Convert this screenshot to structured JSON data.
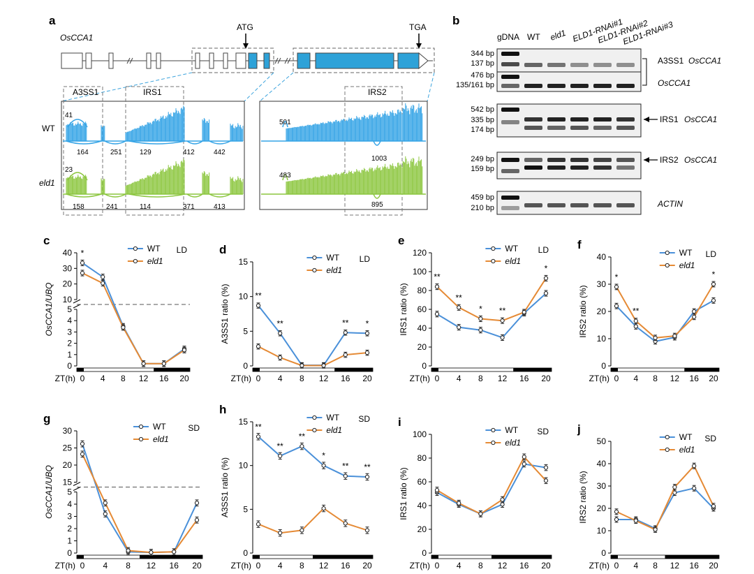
{
  "figure": {
    "colors": {
      "wt": "#4a90d9",
      "eld1": "#e58a35",
      "wt_track": "#33a3e6",
      "eld1_track": "#8cc63f",
      "exon": "#2ea2d8"
    },
    "panels": {
      "a": {
        "label": "a",
        "gene": "OsCCA1",
        "atg": "ATG",
        "tga": "TGA",
        "regions": [
          "A3SS1",
          "IRS1",
          "IRS2"
        ],
        "tracks": [
          {
            "name": "WT",
            "left_arc": "41",
            "right_arc": "501",
            "junctions": [
              "164",
              "251",
              "129",
              "412",
              "442"
            ],
            "right_junction": "1003"
          },
          {
            "name": "eld1",
            "left_arc": "23",
            "right_arc": "483",
            "junctions": [
              "158",
              "241",
              "114",
              "371",
              "413"
            ],
            "right_junction": "895"
          }
        ]
      },
      "b": {
        "label": "b",
        "lanes": [
          "gDNA",
          "WT",
          "eld1",
          "ELD1-RNAi#1",
          "ELD1-RNAi#2",
          "ELD1-RNAi#3"
        ],
        "gels": [
          {
            "sizes": [
              "344 bp",
              "137 bp"
            ],
            "label": "A3SS1",
            "gene": "OsCCA1"
          },
          {
            "sizes": [
              "476 bp",
              "135/161 bp"
            ],
            "label": "",
            "gene": "OsCCA1"
          },
          {
            "sizes": [
              "542 bp",
              "335 bp",
              "174 bp"
            ],
            "label": "IRS1",
            "gene": "OsCCA1"
          },
          {
            "sizes": [
              "249 bp",
              "159 bp"
            ],
            "label": "IRS2",
            "gene": "OsCCA1"
          },
          {
            "sizes": [
              "459 bp",
              "210 bp"
            ],
            "label": "",
            "gene": "ACTIN"
          }
        ]
      }
    }
  },
  "chart_data": [
    {
      "id": "c",
      "type": "line",
      "condition": "LD",
      "xlabel": "ZT(h)",
      "ylabel": "OsCCA1/UBQ",
      "x": [
        0,
        4,
        8,
        12,
        16,
        20
      ],
      "broken_axis": true,
      "yticks": [
        "0",
        "1",
        "2",
        "3",
        "4",
        "5",
        "10",
        "20",
        "30",
        "40"
      ],
      "series": [
        {
          "name": "WT",
          "values": [
            33.5,
            24.5,
            3.5,
            0.2,
            0.2,
            1.5
          ]
        },
        {
          "name": "eld1",
          "values": [
            27,
            20.5,
            3.4,
            0.2,
            0.2,
            1.4
          ]
        }
      ],
      "sig": [
        {
          "x": 0,
          "text": "*"
        }
      ]
    },
    {
      "id": "d",
      "type": "line",
      "condition": "LD",
      "xlabel": "ZT(h)",
      "ylabel": "A3SS1 ratio (%)",
      "x": [
        0,
        4,
        8,
        12,
        16,
        20
      ],
      "ylim": [
        0,
        15
      ],
      "yticks": [
        0,
        5,
        10,
        15
      ],
      "series": [
        {
          "name": "WT",
          "values": [
            8.7,
            4.7,
            0.1,
            0.1,
            4.8,
            4.7
          ]
        },
        {
          "name": "eld1",
          "values": [
            2.8,
            1.2,
            0.05,
            0.05,
            1.6,
            1.9
          ]
        }
      ],
      "sig": [
        {
          "x": 0,
          "text": "**"
        },
        {
          "x": 4,
          "text": "**"
        },
        {
          "x": 16,
          "text": "**"
        },
        {
          "x": 20,
          "text": "*"
        }
      ]
    },
    {
      "id": "e",
      "type": "line",
      "condition": "LD",
      "xlabel": "ZT(h)",
      "ylabel": "IRS1 ratio (%)",
      "x": [
        0,
        4,
        8,
        12,
        16,
        20
      ],
      "ylim": [
        0,
        120
      ],
      "yticks": [
        0,
        20,
        40,
        60,
        80,
        100,
        120
      ],
      "series": [
        {
          "name": "WT",
          "values": [
            55,
            41,
            38,
            30,
            56,
            77
          ]
        },
        {
          "name": "eld1",
          "values": [
            84,
            62,
            50,
            48,
            57,
            93
          ]
        }
      ],
      "sig": [
        {
          "x": 0,
          "text": "**"
        },
        {
          "x": 4,
          "text": "**"
        },
        {
          "x": 8,
          "text": "*"
        },
        {
          "x": 12,
          "text": "**"
        },
        {
          "x": 20,
          "text": "*"
        }
      ]
    },
    {
      "id": "f",
      "type": "line",
      "condition": "LD",
      "xlabel": "ZT(h)",
      "ylabel": "IRS2 ratio (%)",
      "x": [
        0,
        4,
        8,
        12,
        16,
        20
      ],
      "ylim": [
        0,
        40
      ],
      "yticks": [
        0,
        10,
        20,
        30,
        40
      ],
      "series": [
        {
          "name": "WT",
          "values": [
            22,
            14.5,
            9,
            10.5,
            20,
            24
          ]
        },
        {
          "name": "eld1",
          "values": [
            29,
            16.5,
            10.3,
            11,
            18,
            30
          ]
        }
      ],
      "sig": [
        {
          "x": 0,
          "text": "*"
        },
        {
          "x": 4,
          "text": "**"
        },
        {
          "x": 20,
          "text": "*"
        }
      ]
    },
    {
      "id": "g",
      "type": "line",
      "condition": "SD",
      "xlabel": "ZT(h)",
      "ylabel": "OsCCA1/UBQ",
      "x": [
        0,
        4,
        8,
        12,
        16,
        20
      ],
      "broken_axis": true,
      "yticks": [
        "0",
        "1",
        "2",
        "3",
        "4",
        "5",
        "15",
        "20",
        "25",
        "30"
      ],
      "series": [
        {
          "name": "WT",
          "values": [
            26.2,
            3.2,
            0.1,
            0.05,
            0.1,
            4.1
          ]
        },
        {
          "name": "eld1",
          "values": [
            23.2,
            4.1,
            0.2,
            0.05,
            0.1,
            2.7
          ]
        }
      ],
      "sig": []
    },
    {
      "id": "h",
      "type": "line",
      "condition": "SD",
      "xlabel": "ZT(h)",
      "ylabel": "A3SS1 ratio (%)",
      "x": [
        0,
        4,
        8,
        12,
        16,
        20
      ],
      "ylim": [
        0,
        15
      ],
      "yticks": [
        0,
        5,
        10,
        15
      ],
      "series": [
        {
          "name": "WT",
          "values": [
            13.3,
            11.1,
            12.2,
            10,
            8.8,
            8.7
          ]
        },
        {
          "name": "eld1",
          "values": [
            3.3,
            2.3,
            2.6,
            5.1,
            3.4,
            2.6
          ]
        }
      ],
      "sig": [
        {
          "x": 0,
          "text": "**"
        },
        {
          "x": 4,
          "text": "**"
        },
        {
          "x": 8,
          "text": "**"
        },
        {
          "x": 12,
          "text": "*"
        },
        {
          "x": 16,
          "text": "**"
        },
        {
          "x": 20,
          "text": "**"
        }
      ]
    },
    {
      "id": "i",
      "type": "line",
      "condition": "SD",
      "xlabel": "ZT(h)",
      "ylabel": "IRS1 ratio (%)",
      "x": [
        0,
        4,
        8,
        12,
        16,
        20
      ],
      "ylim": [
        0,
        100
      ],
      "yticks": [
        0,
        20,
        40,
        60,
        80,
        100
      ],
      "series": [
        {
          "name": "WT",
          "values": [
            51,
            41,
            33,
            41,
            75,
            72
          ]
        },
        {
          "name": "eld1",
          "values": [
            53,
            42,
            33,
            45,
            81,
            61
          ]
        }
      ],
      "sig": []
    },
    {
      "id": "j",
      "type": "line",
      "condition": "SD",
      "xlabel": "ZT(h)",
      "ylabel": "IRS2 ratio (%)",
      "x": [
        0,
        4,
        8,
        12,
        16,
        20
      ],
      "ylim": [
        0,
        50
      ],
      "yticks": [
        0,
        10,
        20,
        30,
        40,
        50
      ],
      "series": [
        {
          "name": "WT",
          "values": [
            15,
            15,
            11,
            27,
            29,
            20
          ]
        },
        {
          "name": "eld1",
          "values": [
            18.5,
            14.5,
            10.5,
            29.5,
            39,
            21
          ]
        }
      ],
      "sig": []
    }
  ]
}
